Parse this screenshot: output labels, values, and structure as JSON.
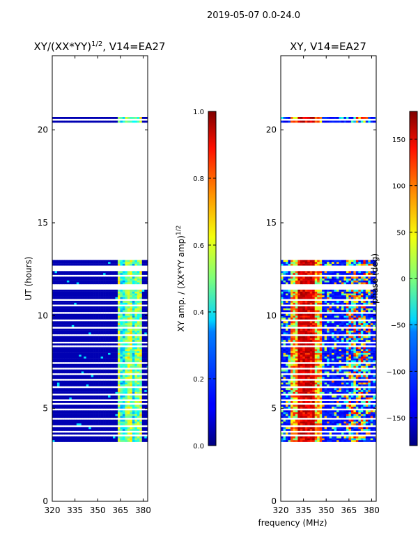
{
  "chart_data": {
    "suptitle": "2019-05-07 0.0-24.0",
    "xlabel": "frequency (MHz)",
    "panels": [
      {
        "id": "ratio",
        "type": "heatmap",
        "title": "XY/(XX*YY)^1/2, V14=EA27",
        "title_main": "XY/(XX*YY)",
        "title_sup": "1/2",
        "title_rest": ", V14=EA27",
        "ylabel": "UT (hours)",
        "xlim": [
          320,
          383
        ],
        "ylim": [
          0,
          24
        ],
        "xticks": [
          320,
          335,
          350,
          365,
          380
        ],
        "yticks": [
          0,
          5,
          10,
          15,
          20
        ],
        "colorbar": {
          "label": "XY amp. / (XX*YY amp)^1/2",
          "label_main": "XY amp. / (XX*YY amp)",
          "label_sup": "1/2",
          "range": [
            0.0,
            1.0
          ],
          "ticks": [
            "0.0",
            "0.2",
            "0.4",
            "0.6",
            "0.8",
            "1.0"
          ],
          "tick_values": [
            0.0,
            0.2,
            0.4,
            0.6,
            0.8,
            1.0
          ]
        },
        "description_values": "low (~0.05) below 363 MHz, 0.3-0.6 in the 363-380 MHz band"
      },
      {
        "id": "phase",
        "type": "heatmap",
        "title": "XY, V14=EA27",
        "ylabel": "",
        "xlim": [
          320,
          383
        ],
        "ylim": [
          0,
          24
        ],
        "xticks": [
          320,
          335,
          350,
          365,
          380
        ],
        "yticks": [
          0,
          5,
          10,
          15,
          20
        ],
        "colorbar": {
          "label": "phase (deg)",
          "range": [
            -180,
            180
          ],
          "ticks": [
            "−150",
            "−100",
            "−50",
            "0",
            "50",
            "100",
            "150"
          ],
          "tick_values": [
            -150,
            -100,
            -50,
            0,
            50,
            100,
            150
          ]
        },
        "description_values": "~-150 deg broadband, ~150 deg near 330-345 MHz, mixed 362-380 MHz"
      }
    ],
    "data_time_ranges_hours": [
      [
        3.2,
        13.0
      ],
      [
        20.4,
        20.7
      ]
    ],
    "gap_rows_hours": [
      3.55,
      3.75,
      4.05,
      4.45,
      4.95,
      5.25,
      5.45,
      5.75,
      6.15,
      6.55,
      6.85,
      7.15,
      7.45,
      8.35,
      8.55,
      8.95,
      9.35,
      9.75,
      10.15,
      10.55,
      10.85,
      11.45,
      11.55,
      11.65,
      12.15,
      12.45,
      12.6,
      20.55
    ]
  }
}
